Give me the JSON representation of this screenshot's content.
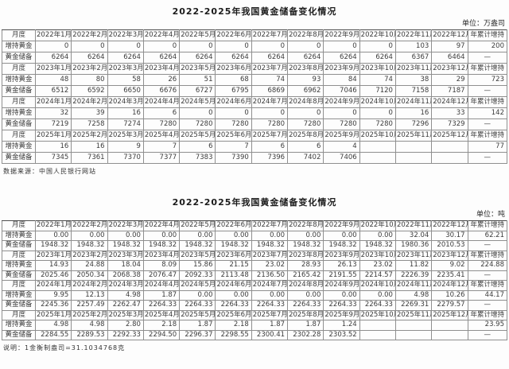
{
  "labels": {
    "month_col": "月度",
    "total_col": "年累计增持",
    "increase_row": "增持黄金",
    "reserve_row": "黄金储备"
  },
  "notes": {
    "source": "数据来源：中国人民银行网站",
    "explain": "说明：1金衡制盎司=31.1034768克"
  },
  "tables": [
    {
      "title": "2022-2025年我国黄金储备变化情况",
      "unit_label": "单位：万盎司",
      "year_blocks": [
        {
          "months": [
            "2022年1月",
            "2022年2月",
            "2022年3月",
            "2022年4月",
            "2022年5月",
            "2022年6月",
            "2022年7月",
            "2022年8月",
            "2022年9月",
            "2022年10月",
            "2022年11月",
            "2022年12月"
          ],
          "increase": [
            "0",
            "0",
            "0",
            "0",
            "0",
            "0",
            "0",
            "0",
            "0",
            "0",
            "103",
            "97"
          ],
          "increase_total": "200",
          "reserve": [
            "6264",
            "6264",
            "6264",
            "6264",
            "6264",
            "6264",
            "6264",
            "6264",
            "6264",
            "6264",
            "6367",
            "6464"
          ],
          "reserve_total": "—"
        },
        {
          "months": [
            "2023年1月",
            "2023年2月",
            "2023年3月",
            "2023年4月",
            "2023年5月",
            "2023年6月",
            "2023年7月",
            "2023年8月",
            "2023年9月",
            "2023年10月",
            "2023年11月",
            "2023年12月"
          ],
          "increase": [
            "48",
            "80",
            "58",
            "26",
            "51",
            "68",
            "74",
            "93",
            "84",
            "74",
            "38",
            "29"
          ],
          "increase_total": "723",
          "reserve": [
            "6512",
            "6592",
            "6650",
            "6676",
            "6727",
            "6795",
            "6869",
            "6962",
            "7046",
            "7120",
            "7158",
            "7187"
          ],
          "reserve_total": "—"
        },
        {
          "months": [
            "2024年1月",
            "2024年2月",
            "2024年3月",
            "2024年4月",
            "2024年5月",
            "2024年6月",
            "2024年7月",
            "2024年8月",
            "2024年9月",
            "2024年10月",
            "2024年11月",
            "2024年12月"
          ],
          "increase": [
            "32",
            "39",
            "16",
            "6",
            "0",
            "0",
            "0",
            "0",
            "0",
            "0",
            "16",
            "33"
          ],
          "increase_total": "142",
          "reserve": [
            "7219",
            "7258",
            "7274",
            "7280",
            "7280",
            "7280",
            "7280",
            "7280",
            "7280",
            "7280",
            "7296",
            "7329"
          ],
          "reserve_total": "—"
        },
        {
          "months": [
            "2025年1月",
            "2025年2月",
            "2025年3月",
            "2025年4月",
            "2025年5月",
            "2025年6月",
            "2025年7月",
            "2025年8月",
            "2025年9月",
            "2025年10月",
            "2025年11月",
            "2025年12月"
          ],
          "increase": [
            "16",
            "16",
            "9",
            "7",
            "6",
            "7",
            "6",
            "6",
            "4",
            "",
            "",
            ""
          ],
          "increase_total": "77",
          "reserve": [
            "7345",
            "7361",
            "7370",
            "7377",
            "7383",
            "7390",
            "7396",
            "7402",
            "7406",
            "",
            "",
            ""
          ],
          "reserve_total": "—"
        }
      ]
    },
    {
      "title": "2022-2025年我国黄金储备变化情况",
      "unit_label": "单位：吨",
      "year_blocks": [
        {
          "months": [
            "2022年1月",
            "2022年2月",
            "2022年3月",
            "2022年4月",
            "2022年5月",
            "2022年6月",
            "2022年7月",
            "2022年8月",
            "2022年9月",
            "2022年10月",
            "2022年11月",
            "2022年12月"
          ],
          "increase": [
            "0.00",
            "0.00",
            "0.00",
            "0.00",
            "0.00",
            "0.00",
            "0.00",
            "0.00",
            "0.00",
            "0.00",
            "32.04",
            "30.17"
          ],
          "increase_total": "62.21",
          "reserve": [
            "1948.32",
            "1948.32",
            "1948.32",
            "1948.32",
            "1948.32",
            "1948.32",
            "1948.32",
            "1948.32",
            "1948.32",
            "1948.32",
            "1980.36",
            "2010.53"
          ],
          "reserve_total": "—"
        },
        {
          "months": [
            "2023年1月",
            "2023年2月",
            "2023年3月",
            "2023年4月",
            "2023年5月",
            "2023年6月",
            "2023年7月",
            "2023年8月",
            "2023年9月",
            "2023年10月",
            "2023年11月",
            "2023年12月"
          ],
          "increase": [
            "14.93",
            "24.88",
            "18.04",
            "8.09",
            "15.86",
            "21.15",
            "23.02",
            "28.93",
            "26.13",
            "23.02",
            "11.82",
            "9.02"
          ],
          "increase_total": "224.88",
          "reserve": [
            "2025.46",
            "2050.34",
            "2068.38",
            "2076.47",
            "2092.33",
            "2113.48",
            "2136.50",
            "2165.42",
            "2191.55",
            "2214.57",
            "2226.39",
            "2235.41"
          ],
          "reserve_total": "—"
        },
        {
          "months": [
            "2024年1月",
            "2024年2月",
            "2024年3月",
            "2024年4月",
            "2024年5月",
            "2024年6月",
            "2024年7月",
            "2024年8月",
            "2024年9月",
            "2024年10月",
            "2024年11月",
            "2024年12月"
          ],
          "increase": [
            "9.95",
            "12.13",
            "4.98",
            "1.87",
            "0.00",
            "0.00",
            "0.00",
            "0.00",
            "0.00",
            "0.00",
            "4.98",
            "10.26"
          ],
          "increase_total": "44.17",
          "reserve": [
            "2245.36",
            "2257.49",
            "2262.47",
            "2264.33",
            "2264.33",
            "2264.33",
            "2264.33",
            "2264.33",
            "2264.33",
            "2264.33",
            "2269.31",
            "2279.57"
          ],
          "reserve_total": "—"
        },
        {
          "months": [
            "2025年1月",
            "2025年2月",
            "2025年3月",
            "2025年4月",
            "2025年5月",
            "2025年6月",
            "2025年7月",
            "2025年8月",
            "2025年9月",
            "2025年10月",
            "2025年11月",
            "2025年12月"
          ],
          "increase": [
            "4.98",
            "4.98",
            "2.80",
            "2.18",
            "1.87",
            "2.18",
            "1.87",
            "1.87",
            "1.24",
            "",
            "",
            ""
          ],
          "increase_total": "23.95",
          "reserve": [
            "2284.55",
            "2289.53",
            "2292.33",
            "2294.50",
            "2296.37",
            "2298.55",
            "2300.41",
            "2302.28",
            "2303.52",
            "",
            "",
            ""
          ],
          "reserve_total": "—"
        }
      ]
    }
  ]
}
